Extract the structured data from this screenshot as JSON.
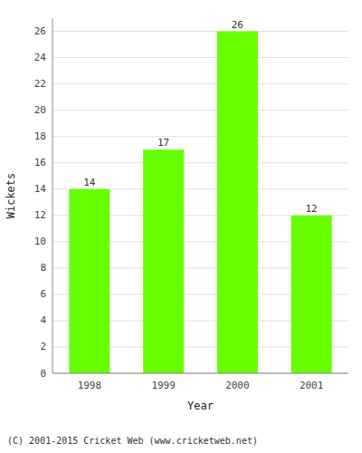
{
  "chart_data": {
    "type": "bar",
    "categories": [
      "1998",
      "1999",
      "2000",
      "2001"
    ],
    "values": [
      14,
      17,
      26,
      12
    ],
    "color": "#66ff00",
    "xlabel": "Year",
    "ylabel": "Wickets",
    "caption": "(C) 2001-2015 Cricket Web (www.cricketweb.net)",
    "ylim": [
      0,
      27
    ],
    "yticks": [
      0,
      2,
      4,
      6,
      8,
      10,
      12,
      14,
      16,
      18,
      20,
      22,
      24,
      26
    ],
    "grid": true,
    "data_labels": true
  }
}
